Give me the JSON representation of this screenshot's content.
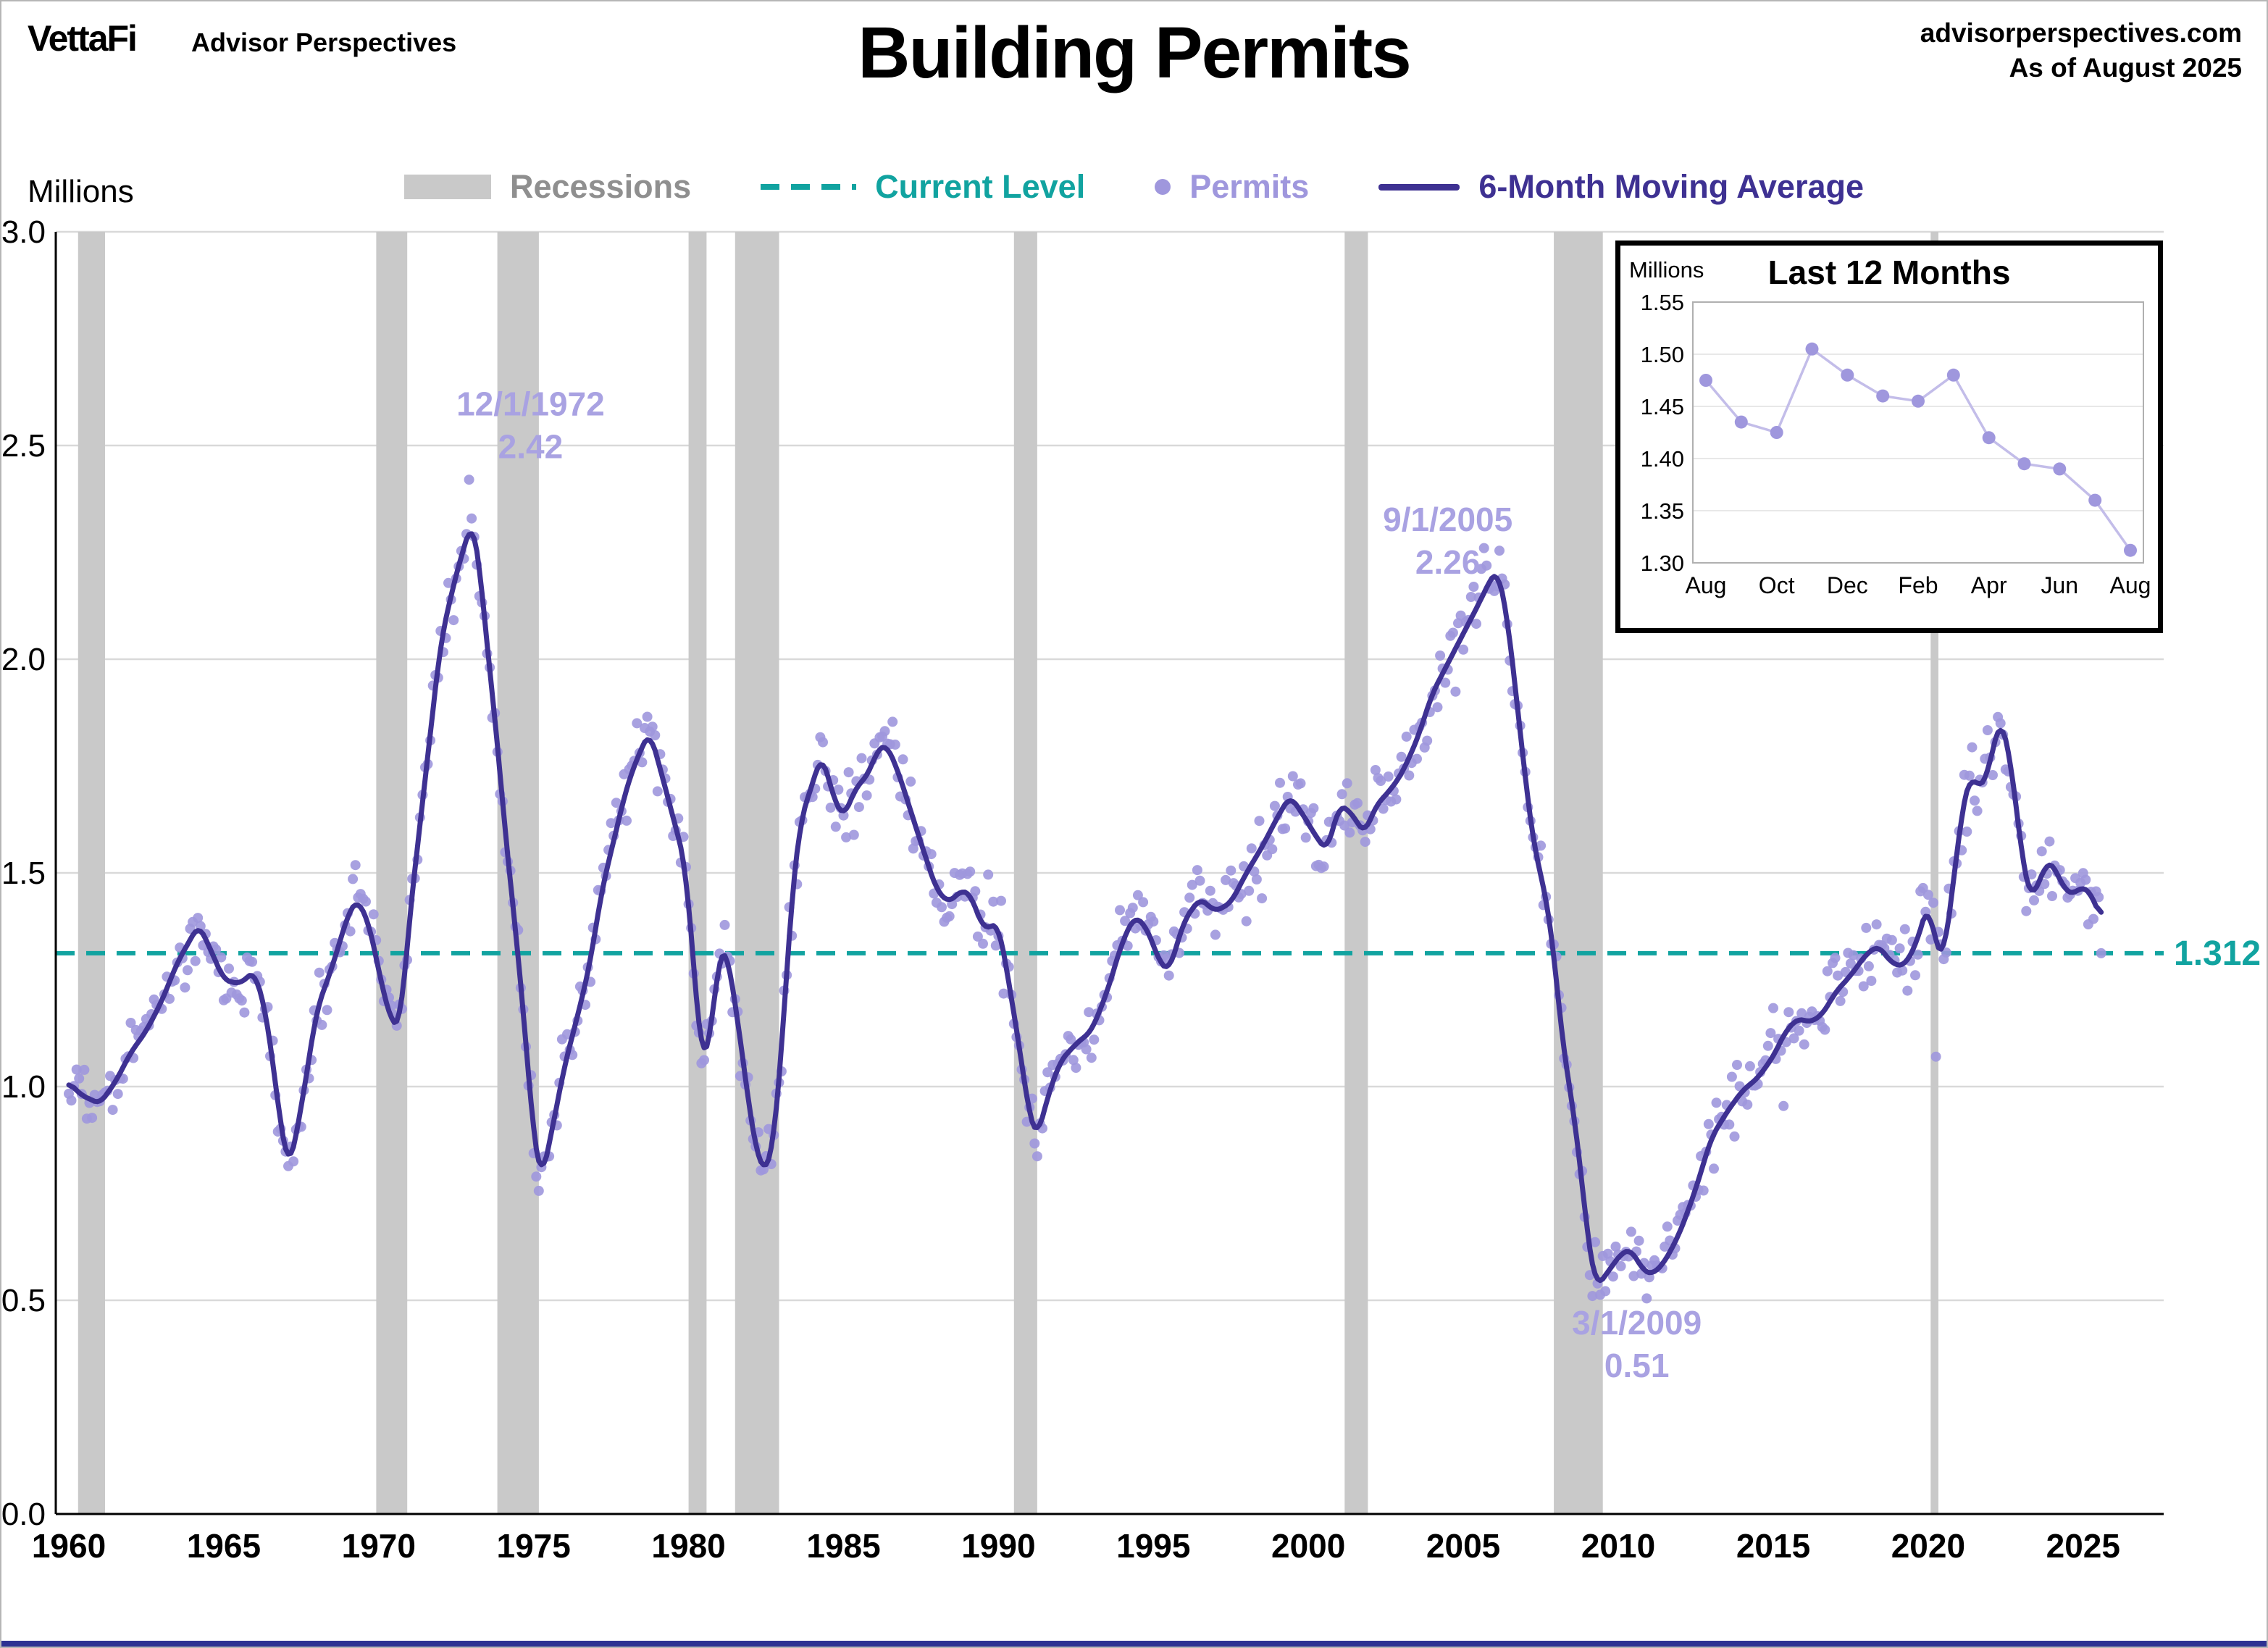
{
  "header": {
    "logo": "VettaFi",
    "logo_sub": "Advisor Perspectives",
    "title": "Building Permits",
    "source": "advisorperspectives.com",
    "as_of": "As of August 2025"
  },
  "legend": {
    "units": "Millions",
    "recessions": "Recessions",
    "current_level": "Current Level",
    "permits": "Permits",
    "moving_average": "6-Month Moving Average"
  },
  "colors": {
    "permits_dot": "#9f97dd",
    "ma_line": "#3e3192",
    "teal": "#11a3a0",
    "recession": "#c9c9c9",
    "annotation": "#a9a2e2",
    "grid": "#d9d9d9",
    "axis": "#000000",
    "legend_gray": "#8f8f8f",
    "inset_line": "#c3bde9"
  },
  "chart_data": [
    {
      "id": "main",
      "type": "scatter",
      "title": "Building Permits",
      "ylabel": "Millions",
      "ylim": [
        0,
        3
      ],
      "ytick_step": 0.5,
      "xlim": [
        1959.58,
        2027.6
      ],
      "xticks": [
        1960,
        1965,
        1970,
        1975,
        1980,
        1985,
        1990,
        1995,
        2000,
        2005,
        2010,
        2015,
        2020,
        2025
      ],
      "grid": "horizontal",
      "current_level": 1.312,
      "current_level_label": "1.312",
      "recessions": [
        [
          1960.3,
          1961.17
        ],
        [
          1969.92,
          1970.92
        ],
        [
          1973.83,
          1975.17
        ],
        [
          1980.0,
          1980.58
        ],
        [
          1981.5,
          1982.92
        ],
        [
          1990.5,
          1991.25
        ],
        [
          2001.17,
          2001.92
        ],
        [
          2007.92,
          2009.5
        ],
        [
          2020.08,
          2020.33
        ]
      ],
      "ma_series": [
        [
          1960.0,
          1.01
        ],
        [
          1960.4,
          0.98
        ],
        [
          1961.0,
          0.96
        ],
        [
          1961.5,
          1.01
        ],
        [
          1962.0,
          1.08
        ],
        [
          1962.5,
          1.13
        ],
        [
          1963.0,
          1.2
        ],
        [
          1963.5,
          1.29
        ],
        [
          1964.2,
          1.38
        ],
        [
          1964.7,
          1.3
        ],
        [
          1965.0,
          1.25
        ],
        [
          1965.5,
          1.24
        ],
        [
          1966.0,
          1.27
        ],
        [
          1966.4,
          1.16
        ],
        [
          1966.8,
          0.93
        ],
        [
          1967.1,
          0.8
        ],
        [
          1967.5,
          0.95
        ],
        [
          1968.0,
          1.18
        ],
        [
          1968.5,
          1.28
        ],
        [
          1969.0,
          1.4
        ],
        [
          1969.3,
          1.44
        ],
        [
          1969.7,
          1.38
        ],
        [
          1970.0,
          1.27
        ],
        [
          1970.4,
          1.15
        ],
        [
          1970.7,
          1.14
        ],
        [
          1971.0,
          1.4
        ],
        [
          1971.5,
          1.72
        ],
        [
          1972.0,
          2.04
        ],
        [
          1972.4,
          2.17
        ],
        [
          1972.7,
          2.25
        ],
        [
          1973.0,
          2.32
        ],
        [
          1973.2,
          2.26
        ],
        [
          1973.5,
          2.03
        ],
        [
          1973.8,
          1.83
        ],
        [
          1974.1,
          1.58
        ],
        [
          1974.4,
          1.38
        ],
        [
          1974.7,
          1.15
        ],
        [
          1975.0,
          0.88
        ],
        [
          1975.25,
          0.78
        ],
        [
          1975.6,
          0.9
        ],
        [
          1976.0,
          1.05
        ],
        [
          1976.4,
          1.16
        ],
        [
          1976.8,
          1.28
        ],
        [
          1977.2,
          1.46
        ],
        [
          1977.6,
          1.58
        ],
        [
          1978.0,
          1.7
        ],
        [
          1978.4,
          1.78
        ],
        [
          1978.75,
          1.83
        ],
        [
          1979.1,
          1.74
        ],
        [
          1979.5,
          1.63
        ],
        [
          1979.9,
          1.52
        ],
        [
          1980.2,
          1.25
        ],
        [
          1980.45,
          1.04
        ],
        [
          1980.7,
          1.12
        ],
        [
          1981.0,
          1.31
        ],
        [
          1981.2,
          1.33
        ],
        [
          1981.6,
          1.15
        ],
        [
          1981.9,
          0.98
        ],
        [
          1982.2,
          0.84
        ],
        [
          1982.45,
          0.8
        ],
        [
          1982.7,
          0.84
        ],
        [
          1983.0,
          1.08
        ],
        [
          1983.3,
          1.42
        ],
        [
          1983.6,
          1.62
        ],
        [
          1984.0,
          1.71
        ],
        [
          1984.3,
          1.78
        ],
        [
          1984.7,
          1.67
        ],
        [
          1985.0,
          1.63
        ],
        [
          1985.4,
          1.7
        ],
        [
          1985.8,
          1.73
        ],
        [
          1986.1,
          1.79
        ],
        [
          1986.4,
          1.8
        ],
        [
          1986.8,
          1.73
        ],
        [
          1987.1,
          1.66
        ],
        [
          1987.5,
          1.57
        ],
        [
          1988.0,
          1.46
        ],
        [
          1988.4,
          1.43
        ],
        [
          1988.8,
          1.46
        ],
        [
          1989.1,
          1.45
        ],
        [
          1989.5,
          1.37
        ],
        [
          1990.0,
          1.38
        ],
        [
          1990.3,
          1.26
        ],
        [
          1990.7,
          1.08
        ],
        [
          1991.0,
          0.93
        ],
        [
          1991.25,
          0.88
        ],
        [
          1991.6,
          0.98
        ],
        [
          1992.0,
          1.06
        ],
        [
          1992.5,
          1.1
        ],
        [
          1993.0,
          1.13
        ],
        [
          1993.5,
          1.22
        ],
        [
          1994.0,
          1.34
        ],
        [
          1994.4,
          1.4
        ],
        [
          1994.8,
          1.37
        ],
        [
          1995.2,
          1.29
        ],
        [
          1995.5,
          1.27
        ],
        [
          1996.0,
          1.39
        ],
        [
          1996.5,
          1.44
        ],
        [
          1997.0,
          1.41
        ],
        [
          1997.5,
          1.43
        ],
        [
          1998.0,
          1.5
        ],
        [
          1998.5,
          1.56
        ],
        [
          1999.0,
          1.63
        ],
        [
          1999.4,
          1.68
        ],
        [
          1999.8,
          1.64
        ],
        [
          2000.2,
          1.59
        ],
        [
          2000.6,
          1.55
        ],
        [
          2001.0,
          1.66
        ],
        [
          2001.4,
          1.64
        ],
        [
          2001.8,
          1.59
        ],
        [
          2002.2,
          1.66
        ],
        [
          2002.6,
          1.69
        ],
        [
          2003.0,
          1.73
        ],
        [
          2003.5,
          1.81
        ],
        [
          2004.0,
          1.92
        ],
        [
          2004.5,
          1.99
        ],
        [
          2005.0,
          2.06
        ],
        [
          2005.5,
          2.13
        ],
        [
          2005.9,
          2.19
        ],
        [
          2006.1,
          2.21
        ],
        [
          2006.4,
          2.11
        ],
        [
          2006.7,
          1.92
        ],
        [
          2007.0,
          1.72
        ],
        [
          2007.3,
          1.55
        ],
        [
          2007.6,
          1.47
        ],
        [
          2007.9,
          1.33
        ],
        [
          2008.2,
          1.1
        ],
        [
          2008.5,
          0.97
        ],
        [
          2008.8,
          0.8
        ],
        [
          2009.05,
          0.62
        ],
        [
          2009.3,
          0.53
        ],
        [
          2009.7,
          0.57
        ],
        [
          2010.1,
          0.61
        ],
        [
          2010.4,
          0.62
        ],
        [
          2010.8,
          0.57
        ],
        [
          2011.1,
          0.56
        ],
        [
          2011.5,
          0.59
        ],
        [
          2012.0,
          0.66
        ],
        [
          2012.5,
          0.76
        ],
        [
          2013.0,
          0.88
        ],
        [
          2013.5,
          0.94
        ],
        [
          2014.0,
          0.99
        ],
        [
          2014.5,
          1.02
        ],
        [
          2015.0,
          1.07
        ],
        [
          2015.4,
          1.13
        ],
        [
          2015.8,
          1.16
        ],
        [
          2016.2,
          1.15
        ],
        [
          2016.6,
          1.17
        ],
        [
          2017.0,
          1.22
        ],
        [
          2017.5,
          1.26
        ],
        [
          2018.0,
          1.31
        ],
        [
          2018.4,
          1.33
        ],
        [
          2018.8,
          1.29
        ],
        [
          2019.2,
          1.28
        ],
        [
          2019.6,
          1.33
        ],
        [
          2020.0,
          1.43
        ],
        [
          2020.25,
          1.33
        ],
        [
          2020.5,
          1.3
        ],
        [
          2020.8,
          1.47
        ],
        [
          2021.1,
          1.65
        ],
        [
          2021.35,
          1.73
        ],
        [
          2021.6,
          1.7
        ],
        [
          2021.9,
          1.72
        ],
        [
          2022.1,
          1.8
        ],
        [
          2022.35,
          1.86
        ],
        [
          2022.6,
          1.79
        ],
        [
          2022.85,
          1.65
        ],
        [
          2023.1,
          1.5
        ],
        [
          2023.3,
          1.44
        ],
        [
          2023.6,
          1.48
        ],
        [
          2023.85,
          1.53
        ],
        [
          2024.1,
          1.51
        ],
        [
          2024.4,
          1.46
        ],
        [
          2024.7,
          1.45
        ],
        [
          2025.0,
          1.47
        ],
        [
          2025.25,
          1.45
        ],
        [
          2025.45,
          1.42
        ],
        [
          2025.583,
          1.39
        ]
      ],
      "permits_extremes": [
        [
          1972.917,
          2.42
        ],
        [
          2005.667,
          2.26
        ],
        [
          2009.167,
          0.51
        ],
        [
          2020.25,
          1.07
        ],
        [
          2025.583,
          1.312
        ]
      ],
      "annotations": [
        {
          "date": "12/1/1972",
          "value": "2.42",
          "ax": 1974.9,
          "ay_date": 2.57,
          "ay_value": 2.47
        },
        {
          "date": "9/1/2005",
          "value": "2.26",
          "ax": 2004.5,
          "ay_date": 2.3,
          "ay_value": 2.2
        },
        {
          "date": "3/1/2009",
          "value": "0.51",
          "ax": 2010.6,
          "ay_date": 0.42,
          "ay_value": 0.32
        }
      ]
    },
    {
      "id": "last12",
      "type": "line",
      "title": "Last 12 Months",
      "ylabel": "Millions",
      "months": [
        "Aug",
        "Sep",
        "Oct",
        "Nov",
        "Dec",
        "Jan",
        "Feb",
        "Mar",
        "Apr",
        "May",
        "Jun",
        "Jul",
        "Aug"
      ],
      "values": [
        1.475,
        1.435,
        1.425,
        1.505,
        1.48,
        1.46,
        1.455,
        1.48,
        1.42,
        1.395,
        1.39,
        1.36,
        1.312
      ],
      "ylim": [
        1.3,
        1.55
      ],
      "ytick_step": 0.05,
      "xtick_every": 2
    }
  ]
}
